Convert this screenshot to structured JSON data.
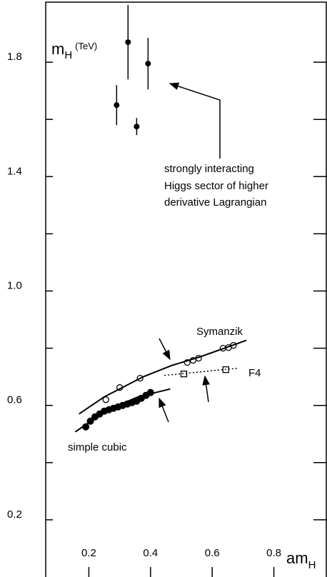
{
  "chart_data": {
    "type": "scatter",
    "ylabel": {
      "symbol": "m",
      "subscript": "H",
      "unit": "(TeV)"
    },
    "xlabel": {
      "symbol": "am",
      "subscript": "H"
    },
    "xlim": [
      0.06,
      0.97
    ],
    "ylim": [
      0,
      2.01
    ],
    "xticks": [
      0.2,
      0.4,
      0.6,
      0.8
    ],
    "yticks": [
      0.2,
      0.6,
      {
        "value": 1,
        "label": "1.0"
      },
      1.4,
      1.8
    ],
    "yminor_ticks": [
      0.4,
      0.8,
      1.2,
      1.6
    ],
    "color": "#000000",
    "series": [
      {
        "marker": "filled-errorbar",
        "x": [
          0.327,
          0.392,
          0.29,
          0.355
        ],
        "values": [
          1.87,
          1.795,
          1.65,
          1.575
        ],
        "errors": [
          0.13,
          0.09,
          0.07,
          0.03
        ]
      },
      {
        "marker": "open-circle",
        "x": [
          0.255,
          0.3,
          0.366,
          0.519,
          0.538,
          0.556,
          0.635,
          0.653,
          0.669
        ],
        "values": [
          0.62,
          0.6625,
          0.695,
          0.75,
          0.7575,
          0.765,
          0.8,
          0.8025,
          0.81
        ]
      },
      {
        "marker": "solid-line",
        "x": [
          0.168,
          0.25,
          0.376,
          0.47,
          0.561,
          0.64,
          0.711
        ],
        "values": [
          0.57,
          0.63,
          0.7,
          0.74,
          0.77,
          0.8,
          0.8275
        ]
      },
      {
        "marker": "open-square",
        "x": [
          0.508,
          0.644
        ],
        "values": [
          0.71,
          0.725
        ]
      },
      {
        "marker": "dotted-line",
        "x": [
          0.445,
          0.683
        ],
        "values": [
          0.705,
          0.73
        ]
      },
      {
        "marker": "filled-circle",
        "x": [
          0.19,
          0.205,
          0.22,
          0.235,
          0.25,
          0.265,
          0.28,
          0.295,
          0.31,
          0.325,
          0.34,
          0.355,
          0.37,
          0.385,
          0.4
        ],
        "values": [
          0.525,
          0.545,
          0.56,
          0.57,
          0.58,
          0.585,
          0.59,
          0.595,
          0.6,
          0.605,
          0.61,
          0.615,
          0.625,
          0.635,
          0.645
        ]
      },
      {
        "marker": "solid-line",
        "x": [
          0.156,
          0.22,
          0.283,
          0.36,
          0.464
        ],
        "values": [
          0.5075,
          0.555,
          0.595,
          0.63,
          0.6575
        ]
      }
    ],
    "annotations": [
      "strongly interacting",
      "Higgs sector of higher",
      "derivative Lagrangian",
      "Symanzik",
      "F4",
      "simple cubic"
    ]
  }
}
